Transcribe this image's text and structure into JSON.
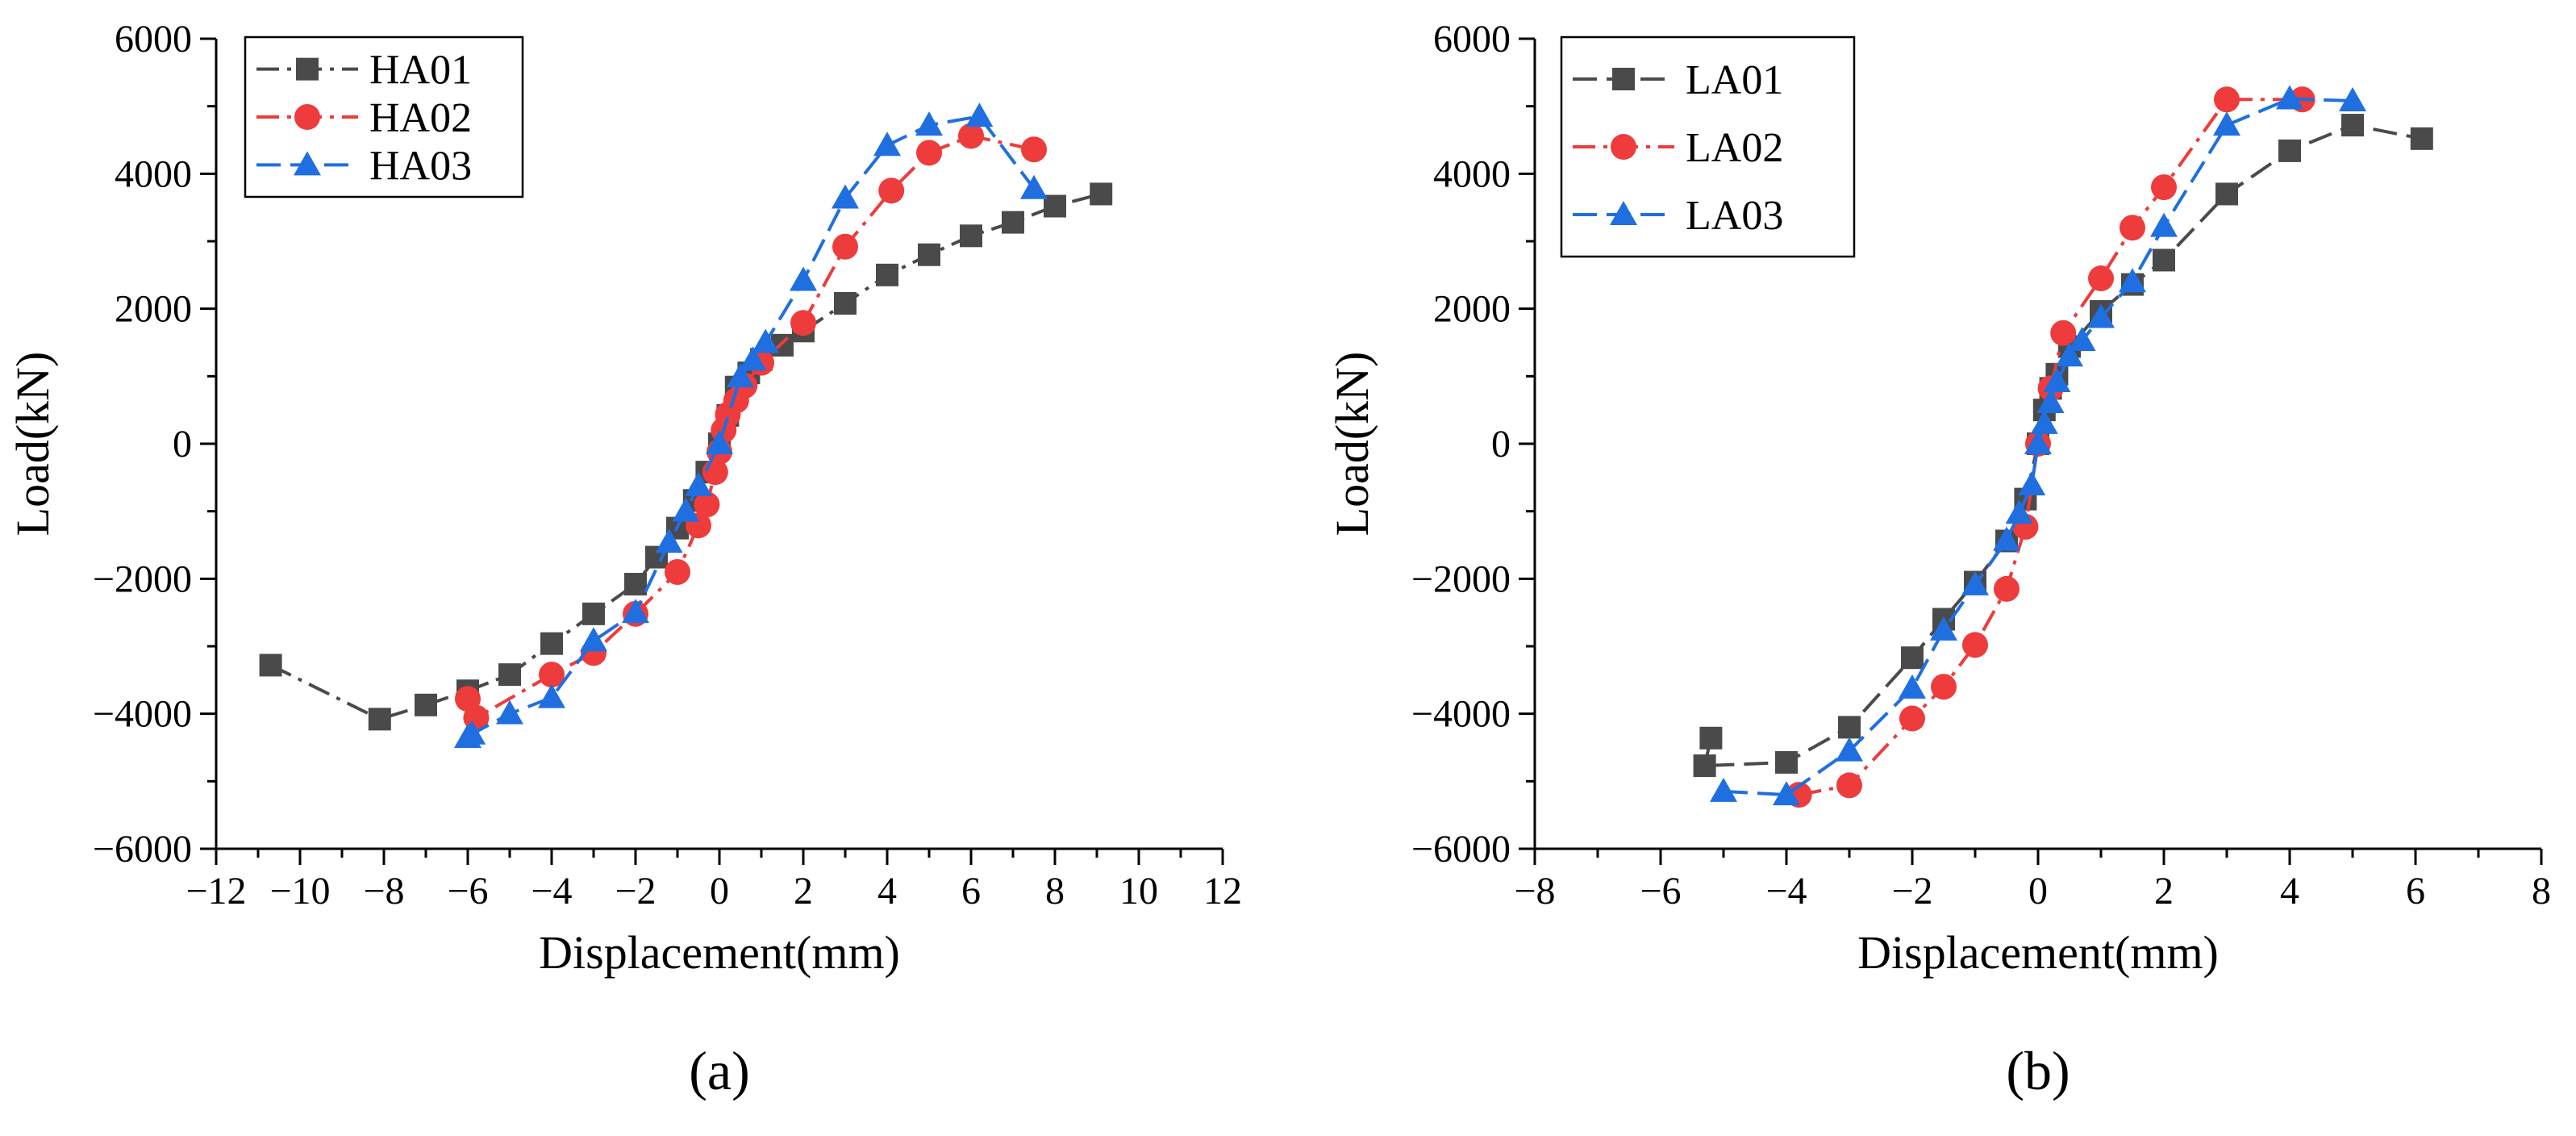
{
  "chart_data": [
    {
      "type": "line",
      "panel_label": "(a)",
      "xlabel": "Displacement(mm)",
      "ylabel": "Load(kN)",
      "xlim": [
        -12,
        12
      ],
      "ylim": [
        -6000,
        6000
      ],
      "xticks": [
        -12,
        -10,
        -8,
        -6,
        -4,
        -2,
        0,
        2,
        4,
        6,
        8,
        10,
        12
      ],
      "yticks": [
        -6000,
        -4000,
        -2000,
        0,
        2000,
        4000,
        6000
      ],
      "legend_position": "top-left",
      "series": [
        {
          "name": "HA01",
          "color": "#4a4a4a",
          "marker": "square",
          "dash": "dash-dot",
          "points": [
            [
              -10.7,
              -3280
            ],
            [
              -8.1,
              -4080
            ],
            [
              -7,
              -3870
            ],
            [
              -6,
              -3660
            ],
            [
              -5,
              -3420
            ],
            [
              -4,
              -2960
            ],
            [
              -3,
              -2520
            ],
            [
              -2,
              -2080
            ],
            [
              -1.5,
              -1680
            ],
            [
              -1,
              -1250
            ],
            [
              -0.6,
              -840
            ],
            [
              -0.3,
              -420
            ],
            [
              0,
              0
            ],
            [
              0.2,
              420
            ],
            [
              0.4,
              840
            ],
            [
              0.7,
              1050
            ],
            [
              1,
              1250
            ],
            [
              1.5,
              1460
            ],
            [
              2,
              1670
            ],
            [
              3,
              2080
            ],
            [
              4,
              2500
            ],
            [
              5,
              2800
            ],
            [
              6,
              3080
            ],
            [
              7,
              3280
            ],
            [
              8,
              3520
            ],
            [
              9.1,
              3700
            ]
          ]
        },
        {
          "name": "HA02",
          "color": "#ee3b3b",
          "marker": "circle",
          "dash": "dash-dot",
          "points": [
            [
              -6,
              -3780
            ],
            [
              -5.8,
              -4060
            ],
            [
              -4,
              -3420
            ],
            [
              -3,
              -3100
            ],
            [
              -2,
              -2520
            ],
            [
              -1,
              -1900
            ],
            [
              -0.5,
              -1210
            ],
            [
              -0.3,
              -900
            ],
            [
              -0.1,
              -420
            ],
            [
              0,
              -120
            ],
            [
              0.1,
              200
            ],
            [
              0.2,
              430
            ],
            [
              0.4,
              640
            ],
            [
              0.6,
              860
            ],
            [
              1,
              1200
            ],
            [
              2,
              1790
            ],
            [
              3,
              2920
            ],
            [
              4.1,
              3750
            ],
            [
              5,
              4310
            ],
            [
              6,
              4560
            ],
            [
              7.5,
              4360
            ]
          ]
        },
        {
          "name": "HA03",
          "color": "#1f6fe0",
          "marker": "triangle",
          "dash": "dash",
          "points": [
            [
              -6,
              -4350
            ],
            [
              -5.9,
              -4300
            ],
            [
              -5,
              -4000
            ],
            [
              -4,
              -3760
            ],
            [
              -3,
              -2920
            ],
            [
              -2,
              -2500
            ],
            [
              -1.2,
              -1460
            ],
            [
              -0.8,
              -1000
            ],
            [
              -0.5,
              -620
            ],
            [
              0,
              0
            ],
            [
              0.5,
              990
            ],
            [
              0.8,
              1240
            ],
            [
              1.1,
              1500
            ],
            [
              2,
              2420
            ],
            [
              3,
              3640
            ],
            [
              4,
              4420
            ],
            [
              5,
              4720
            ],
            [
              6.2,
              4850
            ],
            [
              7.5,
              3780
            ]
          ]
        }
      ]
    },
    {
      "type": "line",
      "panel_label": "(b)",
      "xlabel": "Displacement(mm)",
      "ylabel": "Load(kN)",
      "xlim": [
        -8,
        8
      ],
      "ylim": [
        -6000,
        6000
      ],
      "xticks": [
        -8,
        -6,
        -4,
        -2,
        0,
        2,
        4,
        6,
        8
      ],
      "yticks": [
        -6000,
        -4000,
        -2000,
        0,
        2000,
        4000,
        6000
      ],
      "legend_position": "top-left",
      "series": [
        {
          "name": "LA01",
          "color": "#4a4a4a",
          "marker": "square",
          "dash": "dash",
          "points": [
            [
              -5.2,
              -4360
            ],
            [
              -5.3,
              -4770
            ],
            [
              -4,
              -4720
            ],
            [
              -3,
              -4200
            ],
            [
              -2,
              -3170
            ],
            [
              -1.5,
              -2600
            ],
            [
              -1,
              -2050
            ],
            [
              -0.5,
              -1440
            ],
            [
              -0.2,
              -820
            ],
            [
              0,
              0
            ],
            [
              0.1,
              500
            ],
            [
              0.2,
              820
            ],
            [
              0.3,
              1030
            ],
            [
              0.5,
              1440
            ],
            [
              1,
              1960
            ],
            [
              1.5,
              2360
            ],
            [
              2,
              2720
            ],
            [
              3,
              3700
            ],
            [
              4,
              4340
            ],
            [
              5,
              4720
            ],
            [
              6.1,
              4520
            ]
          ]
        },
        {
          "name": "LA02",
          "color": "#ee3b3b",
          "marker": "circle",
          "dash": "dash-dot",
          "points": [
            [
              -3.8,
              -5200
            ],
            [
              -3,
              -5060
            ],
            [
              -2,
              -4070
            ],
            [
              -1.5,
              -3600
            ],
            [
              -1,
              -2980
            ],
            [
              -0.5,
              -2150
            ],
            [
              -0.2,
              -1230
            ],
            [
              0,
              0
            ],
            [
              0.2,
              820
            ],
            [
              0.4,
              1640
            ],
            [
              1,
              2450
            ],
            [
              1.5,
              3200
            ],
            [
              2,
              3800
            ],
            [
              3,
              5100
            ],
            [
              4.2,
              5100
            ]
          ]
        },
        {
          "name": "LA03",
          "color": "#1f6fe0",
          "marker": "triangle",
          "dash": "dash",
          "points": [
            [
              -5,
              -5150
            ],
            [
              -4,
              -5200
            ],
            [
              -3,
              -4550
            ],
            [
              -2,
              -3620
            ],
            [
              -1.5,
              -2760
            ],
            [
              -1,
              -2090
            ],
            [
              -0.5,
              -1430
            ],
            [
              -0.3,
              -1030
            ],
            [
              -0.1,
              -610
            ],
            [
              0,
              0
            ],
            [
              0.1,
              300
            ],
            [
              0.2,
              610
            ],
            [
              0.3,
              920
            ],
            [
              0.5,
              1300
            ],
            [
              0.7,
              1530
            ],
            [
              1,
              1870
            ],
            [
              1.5,
              2400
            ],
            [
              2,
              3220
            ],
            [
              3,
              4720
            ],
            [
              4,
              5110
            ],
            [
              5,
              5080
            ]
          ]
        }
      ]
    }
  ]
}
